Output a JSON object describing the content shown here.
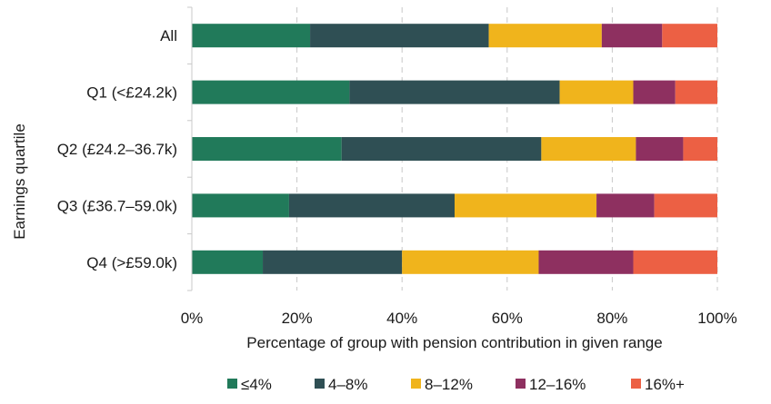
{
  "chart_data": {
    "type": "bar",
    "orientation": "horizontal",
    "stacked": true,
    "categories": [
      "All",
      "Q1 (<£24.2k)",
      "Q2 (£24.2–36.7k)",
      "Q3 (£36.7–59.0k)",
      "Q4 (>£59.0k)"
    ],
    "series": [
      {
        "name": "≤4%",
        "color": "#217a5a",
        "values": [
          22.5,
          30.0,
          28.5,
          18.5,
          13.5
        ]
      },
      {
        "name": "4–8%",
        "color": "#2f4f54",
        "values": [
          34.0,
          40.0,
          38.0,
          31.5,
          26.5
        ]
      },
      {
        "name": "8–12%",
        "color": "#f0b41c",
        "values": [
          21.5,
          14.0,
          18.0,
          27.0,
          26.0
        ]
      },
      {
        "name": "12–16%",
        "color": "#8e3060",
        "values": [
          11.5,
          8.0,
          9.0,
          11.0,
          18.0
        ]
      },
      {
        "name": "16%+",
        "color": "#ec6044",
        "values": [
          10.5,
          8.0,
          6.5,
          12.0,
          16.0
        ]
      }
    ],
    "xlim": [
      0,
      100
    ],
    "xticks": [
      "0%",
      "20%",
      "40%",
      "60%",
      "80%",
      "100%"
    ],
    "xlabel": "Percentage of group with pension contribution in given range",
    "ylabel": "Earnings quartile",
    "grid": "vertical dashed",
    "legend": "bottom"
  }
}
